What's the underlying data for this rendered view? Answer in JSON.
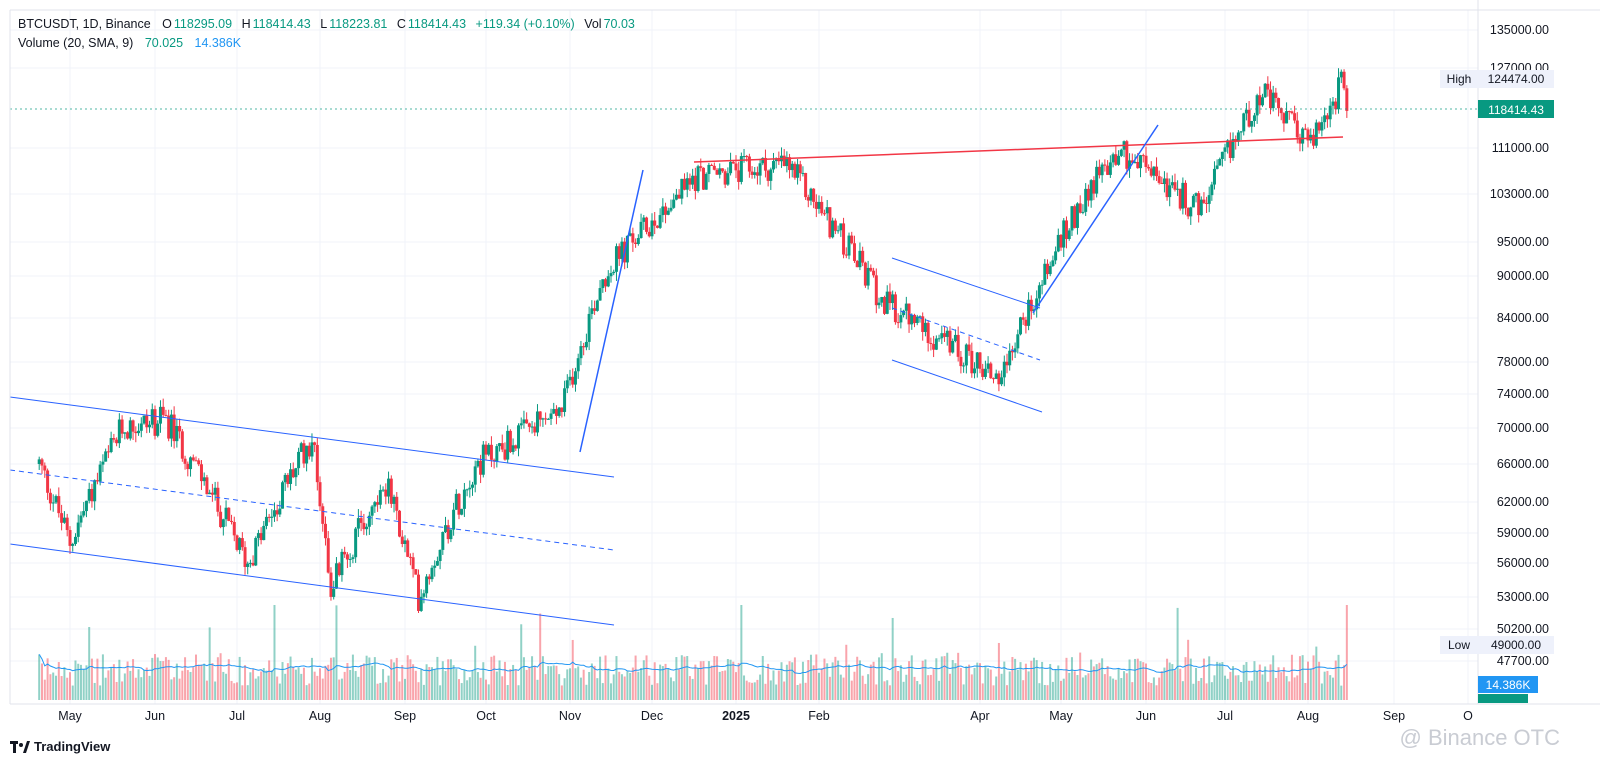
{
  "legend": {
    "symbol": "BTCUSDT, 1D, Binance",
    "o_label": "O",
    "o": "118295.09",
    "h_label": "H",
    "h": "118414.43",
    "l_label": "L",
    "l": "118223.81",
    "c_label": "C",
    "c": "118414.43",
    "change": "+119.34 (+0.10%)",
    "vol_label": "Vol",
    "vol": "70.03",
    "volume_name": "Volume (20, SMA, 9)",
    "volume_value": "70.025",
    "volume_sma": "14.386K"
  },
  "branding": {
    "logo_text": "TradingView",
    "watermark": "@ Binance OTC"
  },
  "colors": {
    "up": "#089981",
    "down": "#f23645",
    "trend_blue": "#2962ff",
    "resistance_red": "#f23645",
    "vol_sma": "#2196f3"
  },
  "chart_data": {
    "type": "candlestick",
    "symbol": "BTCUSDT",
    "interval": "1D",
    "exchange": "Binance",
    "y_axis": {
      "ticks": [
        "135000.00",
        "127000.00",
        "111000.00",
        "103000.00",
        "95000.00",
        "90000.00",
        "84000.00",
        "78000.00",
        "74000.00",
        "70000.00",
        "66000.00",
        "62000.00",
        "59000.00",
        "56000.00",
        "53000.00",
        "50200.00",
        "47700.00"
      ],
      "high_label": "High",
      "high_value": "124474.00",
      "last_value": "118414.43",
      "low_label": "Low",
      "low_value": "49000.00",
      "volume_sma_value": "14.386K"
    },
    "x_axis": {
      "ticks": [
        "May",
        "Jun",
        "Jul",
        "Aug",
        "Sep",
        "Oct",
        "Nov",
        "Dec",
        "2025",
        "Feb",
        "Apr",
        "May",
        "Jun",
        "Jul",
        "Aug",
        "Sep",
        "O"
      ]
    },
    "approx_close_path": [
      [
        "2024-04-20",
        66000
      ],
      [
        "2024-05-01",
        58000
      ],
      [
        "2024-05-20",
        70000
      ],
      [
        "2024-06-05",
        71000
      ],
      [
        "2024-07-05",
        56000
      ],
      [
        "2024-07-29",
        69000
      ],
      [
        "2024-08-05",
        54000
      ],
      [
        "2024-08-25",
        64000
      ],
      [
        "2024-09-06",
        53000
      ],
      [
        "2024-09-27",
        66000
      ],
      [
        "2024-10-29",
        72000
      ],
      [
        "2024-11-13",
        90000
      ],
      [
        "2024-12-17",
        106000
      ],
      [
        "2025-01-20",
        108000
      ],
      [
        "2025-02-25",
        86000
      ],
      [
        "2025-04-08",
        76000
      ],
      [
        "2025-05-10",
        103000
      ],
      [
        "2025-05-22",
        111000
      ],
      [
        "2025-06-22",
        100000
      ],
      [
        "2025-07-14",
        122000
      ],
      [
        "2025-08-02",
        112000
      ],
      [
        "2025-08-14",
        124474
      ],
      [
        "2025-08-15",
        118414
      ]
    ],
    "volume_value": "70.025",
    "volume_sma": "14.386K"
  }
}
